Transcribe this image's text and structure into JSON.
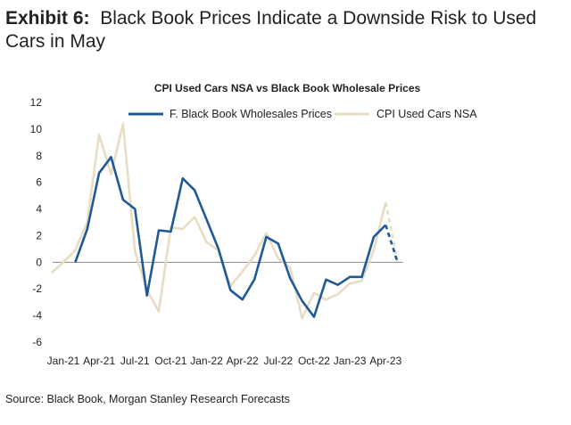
{
  "exhibit": {
    "label": "Exhibit 6:",
    "title": "Black Book Prices Indicate a Downside Risk to Used Cars in May"
  },
  "source": "Source: Black Book, Morgan Stanley Research Forecasts",
  "chart_data": {
    "type": "line",
    "title": "CPI Used Cars NSA vs Black Book Wholesale Prices",
    "xlabel": "",
    "ylabel": "",
    "ylim": [
      -6,
      12
    ],
    "yticks": [
      -6,
      -4,
      -2,
      0,
      2,
      4,
      6,
      8,
      10,
      12
    ],
    "x_tick_labels": [
      "Jan-21",
      "Apr-21",
      "Jul-21",
      "Oct-21",
      "Jan-22",
      "Apr-22",
      "Jul-22",
      "Oct-22",
      "Jan-23",
      "Apr-23"
    ],
    "x_tick_positions": [
      0,
      3,
      6,
      9,
      12,
      15,
      18,
      21,
      24,
      27
    ],
    "legend_position": "top",
    "zero_line": true,
    "series": [
      {
        "name": "F. Black Book Wholesales Prices",
        "color": "#1f5a96",
        "forecast_from_index": 27,
        "x": [
          1,
          2,
          3,
          4,
          5,
          6,
          7,
          8,
          9,
          10,
          11,
          12,
          13,
          14,
          15,
          16,
          17,
          18,
          19,
          20,
          21,
          22,
          23,
          24,
          25,
          26,
          27,
          28
        ],
        "values": [
          0.0,
          2.5,
          6.7,
          7.9,
          4.7,
          4.0,
          -2.5,
          2.4,
          2.3,
          6.3,
          5.4,
          3.2,
          1.0,
          -2.1,
          -2.8,
          -1.3,
          1.9,
          1.4,
          -1.2,
          -2.9,
          -4.1,
          -1.3,
          -1.7,
          -1.1,
          -1.1,
          1.9,
          2.8,
          0.0
        ]
      },
      {
        "name": "CPI Used Cars NSA",
        "color": "#e6ddc2",
        "forecast_from_index": 27,
        "x": [
          -1,
          0,
          1,
          2,
          3,
          4,
          5,
          6,
          7,
          8,
          9,
          10,
          11,
          12,
          13,
          14,
          15,
          16,
          17,
          18,
          19,
          20,
          21,
          22,
          23,
          24,
          25,
          26,
          27,
          28
        ],
        "values": [
          -0.8,
          0.0,
          0.9,
          3.0,
          9.6,
          6.6,
          10.4,
          0.8,
          -2.1,
          -3.7,
          2.6,
          2.5,
          3.4,
          1.5,
          0.9,
          -1.8,
          -0.7,
          0.5,
          2.2,
          0.3,
          -0.4,
          -4.2,
          -2.3,
          -2.8,
          -2.4,
          -1.6,
          -1.4,
          0.9,
          4.5,
          0.0
        ]
      }
    ]
  }
}
